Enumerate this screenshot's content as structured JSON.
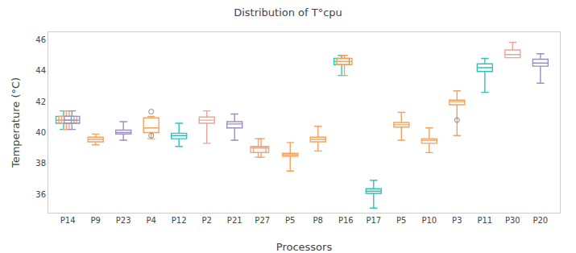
{
  "chart_data": {
    "type": "box",
    "title": "Distribution of T°cpu",
    "xlabel": "Processors",
    "ylabel": "Temperature (°C)",
    "categories": [
      "P14",
      "P9",
      "P23",
      "P4",
      "P12",
      "P2",
      "P21",
      "P27",
      "P5",
      "P8",
      "P16",
      "P17",
      "P5",
      "P10",
      "P3",
      "P11",
      "P30",
      "P20"
    ],
    "boxes": [
      {
        "whislo": 40.2,
        "q1": 40.6,
        "med": 40.8,
        "q3": 41.05,
        "whishi": 41.4,
        "fliers": [],
        "colors": [
          "#2ec4b6",
          "#f4a261",
          "#e8a598",
          "#9b8ec4"
        ]
      },
      {
        "whislo": 39.2,
        "q1": 39.4,
        "med": 39.55,
        "q3": 39.7,
        "whishi": 39.9,
        "fliers": [],
        "colors": [
          "#f4a261"
        ]
      },
      {
        "whislo": 39.5,
        "q1": 39.9,
        "med": 40.0,
        "q3": 40.15,
        "whishi": 40.7,
        "fliers": [],
        "colors": [
          "#9b8ec4"
        ]
      },
      {
        "whislo": 39.6,
        "q1": 40.0,
        "med": 40.3,
        "q3": 40.95,
        "whishi": 41.05,
        "fliers": [
          41.35,
          39.8
        ],
        "colors": [
          "#f4a261"
        ]
      },
      {
        "whislo": 39.1,
        "q1": 39.6,
        "med": 39.8,
        "q3": 39.95,
        "whishi": 40.6,
        "fliers": [],
        "colors": [
          "#2ec4b6"
        ]
      },
      {
        "whislo": 39.3,
        "q1": 40.6,
        "med": 40.8,
        "q3": 41.0,
        "whishi": 41.4,
        "fliers": [],
        "colors": [
          "#e8a598"
        ]
      },
      {
        "whislo": 39.5,
        "q1": 40.3,
        "med": 40.55,
        "q3": 40.7,
        "whishi": 41.2,
        "fliers": [],
        "colors": [
          "#9b8ec4"
        ]
      },
      {
        "whislo": 38.4,
        "q1": 38.7,
        "med": 39.0,
        "q3": 39.1,
        "whishi": 39.6,
        "fliers": [],
        "colors": [
          "#e8a598",
          "#f4a261"
        ]
      },
      {
        "whislo": 37.5,
        "q1": 38.45,
        "med": 38.55,
        "q3": 38.65,
        "whishi": 39.35,
        "fliers": [],
        "colors": [
          "#f4a261"
        ]
      },
      {
        "whislo": 38.8,
        "q1": 39.4,
        "med": 39.55,
        "q3": 39.7,
        "whishi": 40.4,
        "fliers": [],
        "colors": [
          "#f4a261"
        ]
      },
      {
        "whislo": 43.7,
        "q1": 44.4,
        "med": 44.6,
        "q3": 44.8,
        "whishi": 45.0,
        "fliers": [],
        "colors": [
          "#2ec4b6",
          "#f4a261"
        ]
      },
      {
        "whislo": 35.1,
        "q1": 36.05,
        "med": 36.2,
        "q3": 36.35,
        "whishi": 36.9,
        "fliers": [],
        "colors": [
          "#2ec4b6"
        ]
      },
      {
        "whislo": 39.5,
        "q1": 40.35,
        "med": 40.5,
        "q3": 40.65,
        "whishi": 41.3,
        "fliers": [],
        "colors": [
          "#f4a261"
        ]
      },
      {
        "whislo": 38.7,
        "q1": 39.3,
        "med": 39.5,
        "q3": 39.6,
        "whishi": 40.3,
        "fliers": [],
        "colors": [
          "#f4a261"
        ]
      },
      {
        "whislo": 39.8,
        "q1": 41.8,
        "med": 42.0,
        "q3": 42.1,
        "whishi": 42.7,
        "fliers": [
          40.8
        ],
        "colors": [
          "#f4a261"
        ]
      },
      {
        "whislo": 42.6,
        "q1": 43.95,
        "med": 44.2,
        "q3": 44.45,
        "whishi": 44.8,
        "fliers": [],
        "colors": [
          "#2ec4b6"
        ]
      },
      {
        "whislo": 44.85,
        "q1": 44.85,
        "med": 45.05,
        "q3": 45.35,
        "whishi": 45.85,
        "fliers": [],
        "colors": [
          "#e8a598"
        ]
      },
      {
        "whislo": 43.2,
        "q1": 44.3,
        "med": 44.5,
        "q3": 44.75,
        "whishi": 45.1,
        "fliers": [],
        "colors": [
          "#9b8ec4"
        ]
      }
    ],
    "ylim": [
      34.8,
      46.5
    ],
    "yticks": [
      36,
      38,
      40,
      42,
      44,
      46
    ],
    "grid": false
  }
}
